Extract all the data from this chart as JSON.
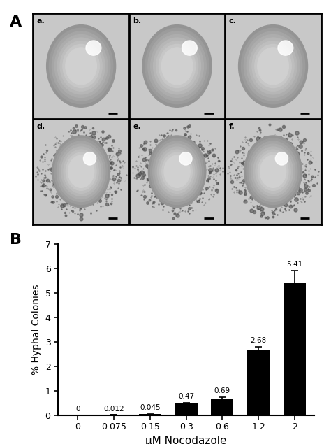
{
  "panel_label_A": "A",
  "panel_label_B": "B",
  "bar_categories": [
    "0",
    "0.075",
    "0.15",
    "0.3",
    "0.6",
    "1.2",
    "2"
  ],
  "bar_values": [
    0,
    0.012,
    0.045,
    0.47,
    0.69,
    2.68,
    5.41
  ],
  "bar_errors": [
    0,
    0.005,
    0.01,
    0.05,
    0.06,
    0.12,
    0.52
  ],
  "bar_color": "#000000",
  "bar_labels": [
    "0",
    "0.012",
    "0.045",
    "0.47",
    "0.69",
    "2.68",
    "5.41"
  ],
  "ylabel": "% Hyphal Colonies",
  "xlabel": "μM Nocodazole",
  "ylim": [
    0,
    7
  ],
  "yticks": [
    0,
    1,
    2,
    3,
    4,
    5,
    6,
    7
  ],
  "background_color": "#ffffff",
  "cell_bg": "#c8c8c8",
  "colony_color": "#aaaaaa",
  "colony_edge": "#888888",
  "image_sub_labels": [
    "a.",
    "b.",
    "c.",
    "d.",
    "e.",
    "f."
  ]
}
